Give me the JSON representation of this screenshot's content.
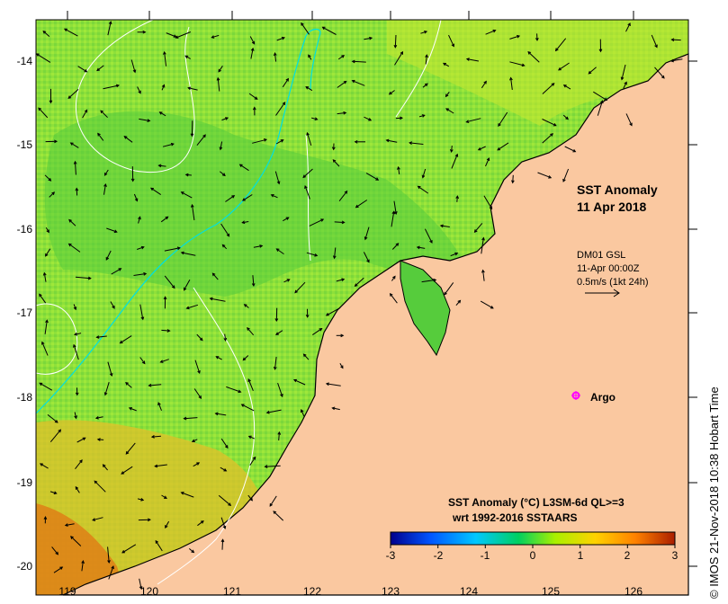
{
  "map": {
    "title_line1": "SST Anomaly",
    "title_line2": "11 Apr 2018",
    "current_info": [
      "DM01 GSL",
      "11-Apr 00:00Z",
      "0.5m/s (1kt 24h)"
    ],
    "argo_label": "Argo",
    "colorbar_title_line1": "SST Anomaly (°C) L3SM-6d QL>=3",
    "colorbar_title_line2": "wrt 1992-2016 SSTAARS",
    "colorbar_ticks": [
      "-3",
      "-2",
      "-1",
      "0",
      "1",
      "2",
      "3"
    ],
    "lon_ticks": [
      "119",
      "120",
      "121",
      "122",
      "123",
      "124",
      "125",
      "126"
    ],
    "lat_ticks": [
      "-14",
      "-15",
      "-16",
      "-17",
      "-18",
      "-19",
      "-20"
    ],
    "credit": "© IMOS 21-Nov-2018 10:38 Hobart Time",
    "colors": {
      "land": "#fac8a0",
      "ocean_base": "#8ee03a",
      "anomaly_scale": [
        "#00008c",
        "#0055ff",
        "#00c8ff",
        "#00d060",
        "#aaf000",
        "#ffd200",
        "#ff8200",
        "#aa1e00"
      ],
      "current_contour": "#00e0e0",
      "argo": "#ff00ff"
    }
  }
}
